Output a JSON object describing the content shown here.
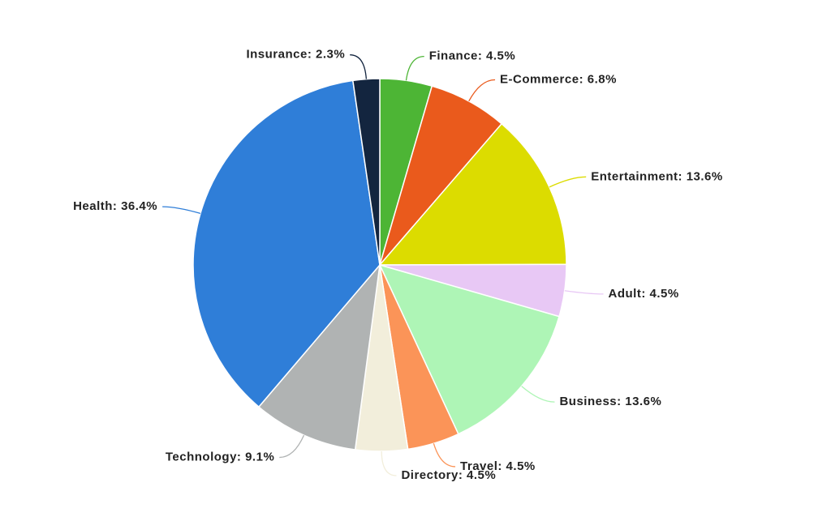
{
  "chart_data": {
    "type": "pie",
    "categories": [
      "Finance",
      "E-Commerce",
      "Entertainment",
      "Adult",
      "Business",
      "Travel",
      "Directory",
      "Technology",
      "Health",
      "Insurance"
    ],
    "values": [
      4.5,
      6.8,
      13.6,
      4.5,
      13.6,
      4.5,
      4.5,
      9.1,
      36.4,
      2.3
    ],
    "value_labels": [
      "Finance: 4.5%",
      "E-Commerce: 6.8%",
      "Entertainment: 13.6%",
      "Adult: 4.5%",
      "Business: 13.6%",
      "Travel: 4.5%",
      "Directory: 4.5%",
      "Technology: 9.1%",
      "Health: 36.4%",
      "Insurance: 2.3%"
    ],
    "colors": [
      "#4db535",
      "#ea5a1c",
      "#dcdc00",
      "#e8c8f5",
      "#aef5b6",
      "#fb9458",
      "#f2eedb",
      "#b0b3b3",
      "#2f7ed8",
      "#13253f"
    ]
  }
}
